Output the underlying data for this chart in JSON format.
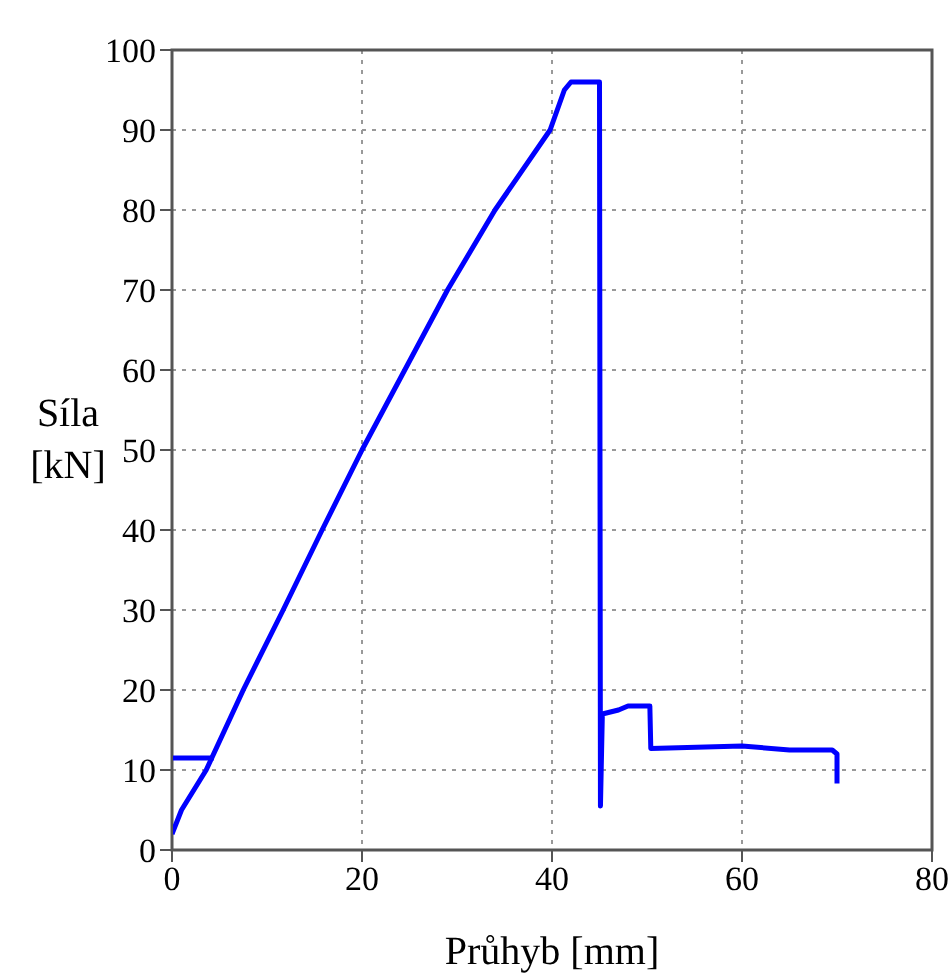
{
  "chart_data": {
    "type": "line",
    "xlabel": "Průhyb [mm]",
    "ylabel": "Síla [kN]",
    "xlim": [
      0,
      80
    ],
    "xticks": [
      0,
      20,
      40,
      60,
      80
    ],
    "ylim": [
      0,
      100
    ],
    "yticks": [
      0,
      10,
      20,
      30,
      40,
      50,
      60,
      70,
      80,
      90,
      100
    ],
    "grid": true,
    "marker": "none",
    "line_style": "solid",
    "series": [
      {
        "color": "#0000ff",
        "x": [
          0,
          1,
          3.6,
          7.5,
          11.7,
          15.8,
          20,
          24.5,
          29,
          34,
          39.8,
          41.3,
          42,
          45,
          45.1,
          45.3,
          47,
          48,
          50.3,
          50.4,
          60,
          65,
          69.5,
          70,
          70
        ],
        "values": [
          2,
          5,
          10,
          20,
          30,
          40,
          50,
          60,
          70,
          80,
          90,
          95,
          96,
          96,
          5.5,
          17,
          17.5,
          18,
          18,
          12.7,
          13,
          12.5,
          12.5,
          12,
          8.3
        ]
      },
      {
        "color": "#0000ff",
        "x": [
          0,
          4.4
        ],
        "values": [
          11.5,
          11.5
        ]
      }
    ]
  }
}
